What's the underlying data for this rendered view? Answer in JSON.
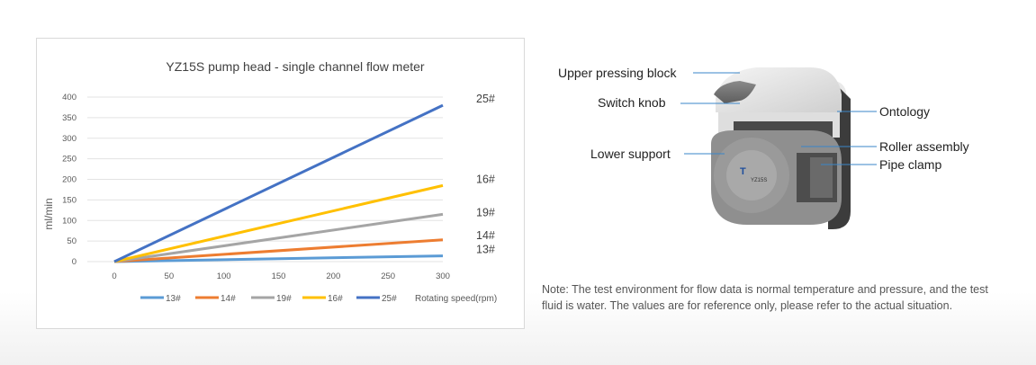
{
  "chart_data": {
    "type": "line",
    "title": "YZ15S pump head - single channel flow meter",
    "xlabel": "Rotating speed(rpm)",
    "ylabel": "ml/min",
    "x": [
      0,
      300
    ],
    "xticks": [
      0,
      50,
      100,
      150,
      200,
      250,
      300
    ],
    "yticks": [
      0,
      50,
      100,
      150,
      200,
      250,
      300,
      350,
      400
    ],
    "xlim": [
      0,
      300
    ],
    "ylim": [
      0,
      400
    ],
    "grid": "horizontal",
    "legend_position": "bottom",
    "series": [
      {
        "name": "13#",
        "values": [
          0,
          14
        ],
        "color": "#5b9bd5"
      },
      {
        "name": "14#",
        "values": [
          0,
          53
        ],
        "color": "#ed7d31"
      },
      {
        "name": "19#",
        "values": [
          0,
          115
        ],
        "color": "#a5a5a5"
      },
      {
        "name": "16#",
        "values": [
          0,
          185
        ],
        "color": "#ffc000"
      },
      {
        "name": "25#",
        "values": [
          0,
          380
        ],
        "color": "#4472c4"
      }
    ],
    "end_labels": [
      "25#",
      "16#",
      "19#",
      "14#",
      "13#"
    ]
  },
  "product": {
    "model_badge": "YZ15S",
    "callouts": {
      "upper_pressing_block": "Upper pressing block",
      "switch_knob": "Switch knob",
      "lower_support": "Lower support",
      "ontology": "Ontology",
      "roller_assembly": "Roller assembly",
      "pipe_clamp": "Pipe clamp"
    }
  },
  "note": "Note: The test environment for flow data is normal temperature and pressure, and the test fluid is water. The values are for reference only, please refer to the actual situation."
}
